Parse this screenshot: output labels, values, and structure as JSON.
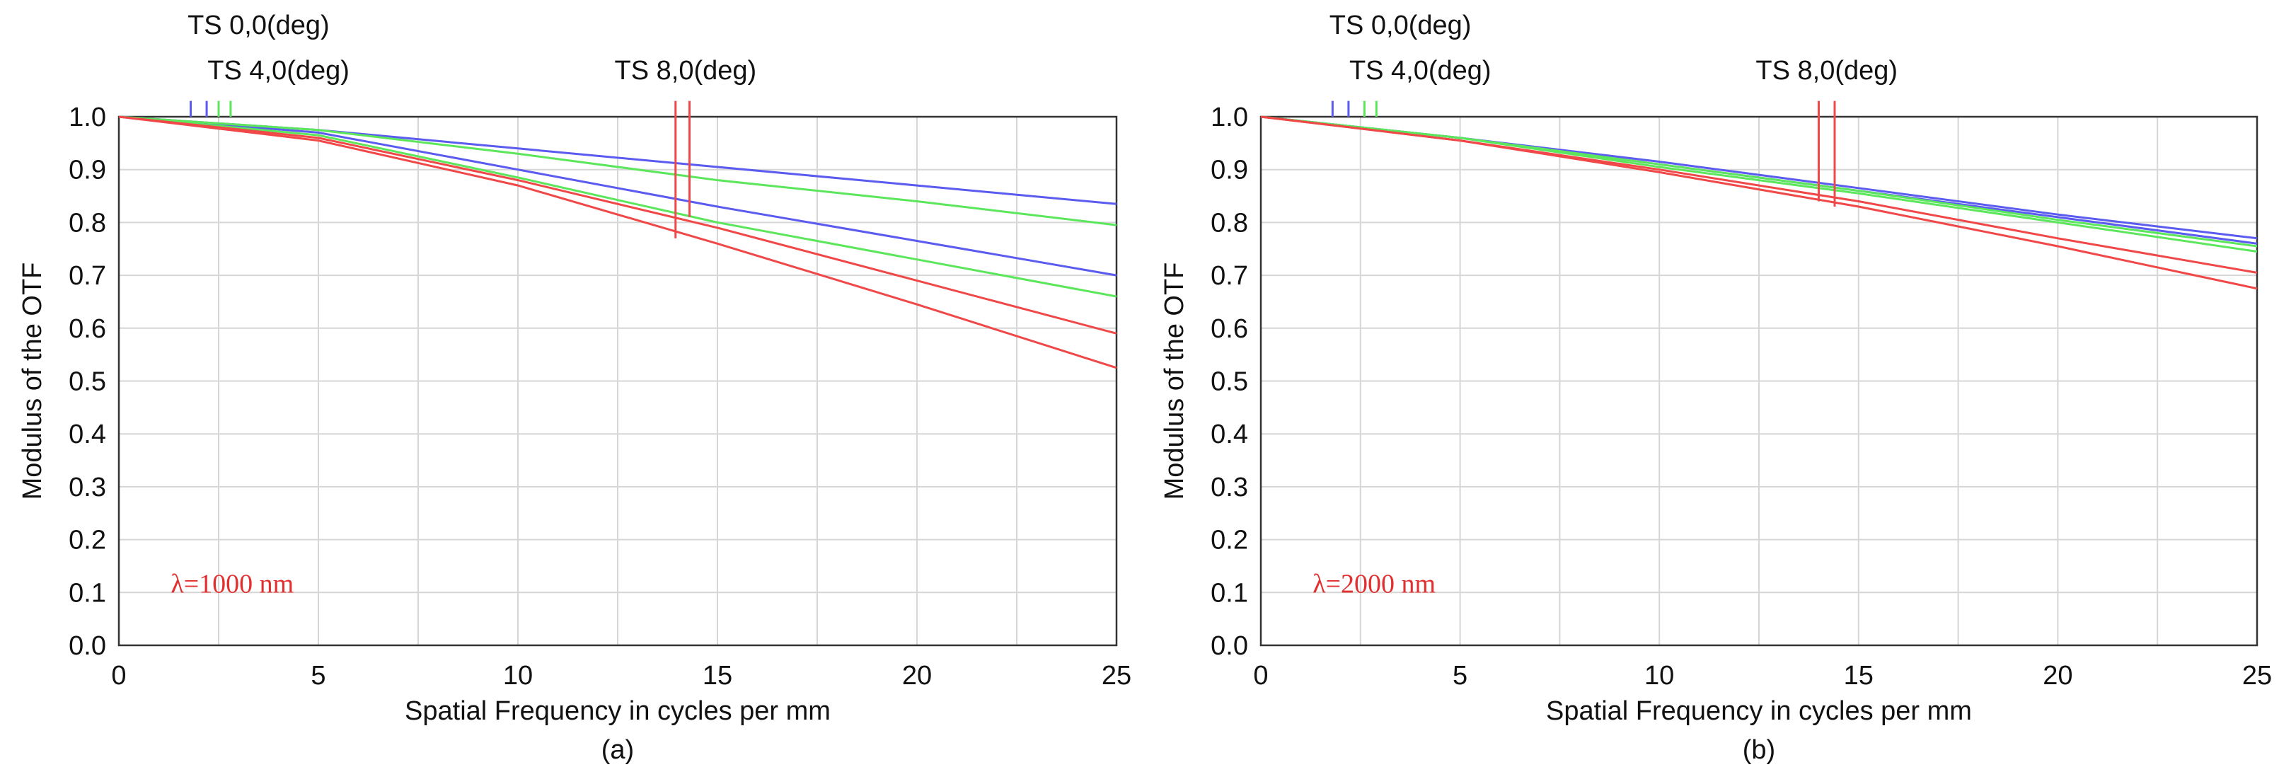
{
  "colors": {
    "blue": "#5b5bf0",
    "green": "#5ce65c",
    "red": "#f04848",
    "grid": "#d6d6d6",
    "axis": "#333333"
  },
  "chart_data": [
    {
      "type": "line",
      "panel_label": "(a)",
      "xlabel": "Spatial Frequency in cycles per mm",
      "ylabel": "Modulus of the OTF",
      "xlim": [
        0,
        25
      ],
      "ylim": [
        0,
        1
      ],
      "x_ticks": [
        "0",
        "5",
        "10",
        "15",
        "20",
        "25"
      ],
      "y_ticks": [
        "0.0",
        "0.1",
        "0.2",
        "0.3",
        "0.4",
        "0.5",
        "0.6",
        "0.7",
        "0.8",
        "0.9",
        "1.0"
      ],
      "annotation": "λ=1000 nm",
      "field_labels": [
        {
          "text": "TS 0,0(deg)",
          "x": 3.5
        },
        {
          "text": "TS 4,0(deg)",
          "x": 4.0
        },
        {
          "text": "TS 8,0(deg)",
          "x": 14.2
        }
      ],
      "legend_markers": [
        {
          "x": 1.8,
          "y_top": 1.03,
          "y_bottom": 1.0,
          "color": "blue"
        },
        {
          "x": 2.2,
          "y_top": 1.03,
          "y_bottom": 1.0,
          "color": "blue"
        },
        {
          "x": 2.5,
          "y_top": 1.03,
          "y_bottom": 1.0,
          "color": "green"
        },
        {
          "x": 2.8,
          "y_top": 1.03,
          "y_bottom": 1.0,
          "color": "green"
        },
        {
          "x": 13.95,
          "y_top": 1.03,
          "y_bottom": 0.77,
          "color": "red"
        },
        {
          "x": 14.3,
          "y_top": 1.03,
          "y_bottom": 0.81,
          "color": "red"
        }
      ],
      "series": [
        {
          "name": "TS 0,0 T",
          "color": "blue",
          "x": [
            0,
            5,
            10,
            15,
            20,
            25
          ],
          "values": [
            1.0,
            0.975,
            0.94,
            0.905,
            0.87,
            0.835
          ]
        },
        {
          "name": "TS 0,0 S",
          "color": "blue",
          "x": [
            0,
            5,
            10,
            15,
            20,
            25
          ],
          "values": [
            1.0,
            0.97,
            0.9,
            0.83,
            0.765,
            0.7
          ]
        },
        {
          "name": "TS 4,0 T",
          "color": "green",
          "x": [
            0,
            5,
            10,
            15,
            20,
            25
          ],
          "values": [
            1.0,
            0.975,
            0.93,
            0.88,
            0.84,
            0.795
          ]
        },
        {
          "name": "TS 4,0 S",
          "color": "green",
          "x": [
            0,
            5,
            10,
            15,
            20,
            25
          ],
          "values": [
            1.0,
            0.965,
            0.885,
            0.8,
            0.73,
            0.66
          ]
        },
        {
          "name": "TS 8,0 T",
          "color": "red",
          "x": [
            0,
            5,
            10,
            15,
            20,
            25
          ],
          "values": [
            1.0,
            0.96,
            0.88,
            0.79,
            0.69,
            0.59
          ]
        },
        {
          "name": "TS 8,0 S",
          "color": "red",
          "x": [
            0,
            5,
            10,
            15,
            20,
            25
          ],
          "values": [
            1.0,
            0.955,
            0.87,
            0.76,
            0.645,
            0.525
          ]
        }
      ]
    },
    {
      "type": "line",
      "panel_label": "(b)",
      "xlabel": "Spatial Frequency in cycles per mm",
      "ylabel": "Modulus of the OTF",
      "xlim": [
        0,
        25
      ],
      "ylim": [
        0,
        1
      ],
      "x_ticks": [
        "0",
        "5",
        "10",
        "15",
        "20",
        "25"
      ],
      "y_ticks": [
        "0.0",
        "0.1",
        "0.2",
        "0.3",
        "0.4",
        "0.5",
        "0.6",
        "0.7",
        "0.8",
        "0.9",
        "1.0"
      ],
      "annotation": "λ=2000 nm",
      "field_labels": [
        {
          "text": "TS 0,0(deg)",
          "x": 3.5
        },
        {
          "text": "TS 4,0(deg)",
          "x": 4.0
        },
        {
          "text": "TS 8,0(deg)",
          "x": 14.2
        }
      ],
      "legend_markers": [
        {
          "x": 1.8,
          "y_top": 1.03,
          "y_bottom": 1.0,
          "color": "blue"
        },
        {
          "x": 2.2,
          "y_top": 1.03,
          "y_bottom": 1.0,
          "color": "blue"
        },
        {
          "x": 2.6,
          "y_top": 1.03,
          "y_bottom": 1.0,
          "color": "green"
        },
        {
          "x": 2.9,
          "y_top": 1.03,
          "y_bottom": 1.0,
          "color": "green"
        },
        {
          "x": 14.0,
          "y_top": 1.03,
          "y_bottom": 0.84,
          "color": "red"
        },
        {
          "x": 14.4,
          "y_top": 1.03,
          "y_bottom": 0.83,
          "color": "red"
        }
      ],
      "series": [
        {
          "name": "TS 0,0 T",
          "color": "blue",
          "x": [
            0,
            5,
            10,
            15,
            20,
            25
          ],
          "values": [
            1.0,
            0.96,
            0.915,
            0.865,
            0.815,
            0.77
          ]
        },
        {
          "name": "TS 0,0 S",
          "color": "blue",
          "x": [
            0,
            5,
            10,
            15,
            20,
            25
          ],
          "values": [
            1.0,
            0.96,
            0.91,
            0.86,
            0.81,
            0.76
          ]
        },
        {
          "name": "TS 4,0 T",
          "color": "green",
          "x": [
            0,
            5,
            10,
            15,
            20,
            25
          ],
          "values": [
            1.0,
            0.96,
            0.91,
            0.86,
            0.805,
            0.755
          ]
        },
        {
          "name": "TS 4,0 S",
          "color": "green",
          "x": [
            0,
            5,
            10,
            15,
            20,
            25
          ],
          "values": [
            1.0,
            0.96,
            0.905,
            0.855,
            0.8,
            0.745
          ]
        },
        {
          "name": "TS 8,0 T",
          "color": "red",
          "x": [
            0,
            5,
            10,
            15,
            20,
            25
          ],
          "values": [
            1.0,
            0.955,
            0.9,
            0.84,
            0.77,
            0.705
          ]
        },
        {
          "name": "TS 8,0 S",
          "color": "red",
          "x": [
            0,
            5,
            10,
            15,
            20,
            25
          ],
          "values": [
            1.0,
            0.955,
            0.895,
            0.83,
            0.755,
            0.675
          ]
        }
      ]
    }
  ]
}
